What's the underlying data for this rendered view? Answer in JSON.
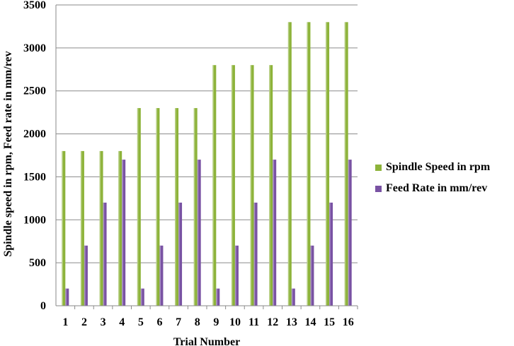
{
  "chart_data": {
    "type": "bar",
    "xlabel": "Trial Number",
    "ylabel": "Spindle speed in rpm, Feed rate in mm/rev",
    "categories": [
      "1",
      "2",
      "3",
      "4",
      "5",
      "6",
      "7",
      "8",
      "9",
      "10",
      "11",
      "12",
      "13",
      "14",
      "15",
      "16"
    ],
    "series": [
      {
        "name": "Spindle Speed in rpm",
        "color": "#8db33a",
        "values": [
          1800,
          1800,
          1800,
          1800,
          2300,
          2300,
          2300,
          2300,
          2800,
          2800,
          2800,
          2800,
          3300,
          3300,
          3300,
          3300
        ]
      },
      {
        "name": "Feed Rate in mm/rev",
        "color": "#7952a3",
        "values": [
          200,
          700,
          1200,
          1700,
          200,
          700,
          1200,
          1700,
          200,
          700,
          1200,
          1700,
          200,
          700,
          1200,
          1700
        ]
      }
    ],
    "ylim": [
      0,
      3500
    ],
    "yticks": [
      0,
      500,
      1000,
      1500,
      2000,
      2500,
      3000,
      3500
    ],
    "grid": true,
    "legend": "right"
  }
}
